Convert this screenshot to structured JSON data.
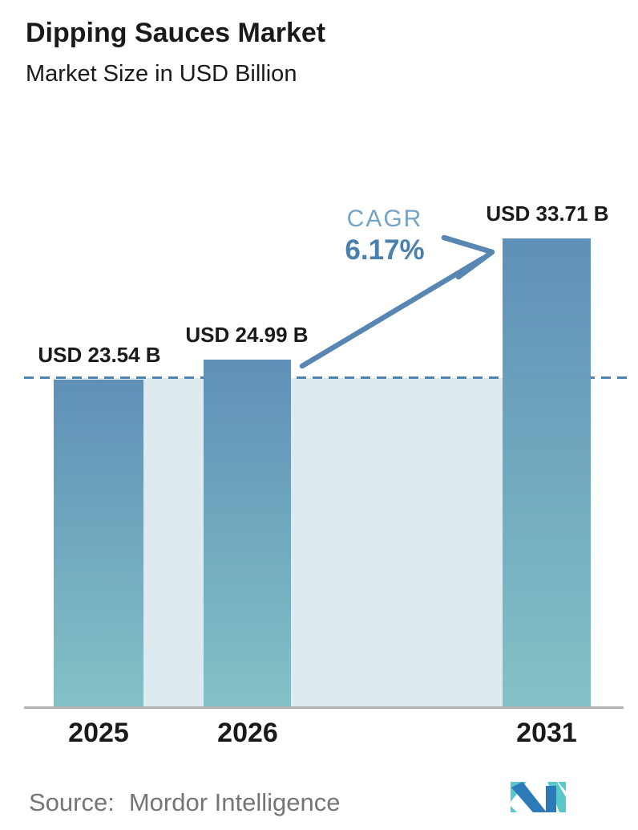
{
  "header": {
    "title": "Dipping Sauces Market",
    "subtitle": "Market Size in USD Billion"
  },
  "chart_data": {
    "type": "bar",
    "title": "Dipping Sauces Market",
    "subtitle": "Market Size in USD Billion",
    "unit": "USD Billion",
    "categories": [
      "2025",
      "2026",
      "2031"
    ],
    "values": [
      23.54,
      24.99,
      33.71
    ],
    "bar_labels": [
      "USD 23.54 B",
      "USD 24.99 B",
      "USD 33.71 B"
    ],
    "cagr_label": "CAGR",
    "cagr_value": "6.17%",
    "reference_line": {
      "style": "dashed",
      "at_value": 23.54
    },
    "ylim": [
      0,
      35
    ],
    "grid": false,
    "legend": "none",
    "xlabel": "",
    "ylabel": ""
  },
  "footer": {
    "source_label": "Source:",
    "source_name": "Mordor Intelligence",
    "logo_name": "mordor-intelligence-logo"
  },
  "colors": {
    "text": "#1a1a1a",
    "bar_top": "#5f90b8",
    "bar_bottom": "#82c2c6",
    "panel": "#dfe9f0",
    "dashed_line": "#5283b0",
    "arrow": "#5886b2",
    "cagr_label": "#74a3c7",
    "cagr_value": "#4a7fae",
    "axis": "#b2b2b2",
    "source_text": "#757575",
    "logo_blue": "#2c7ab8",
    "logo_teal": "#58c8cd"
  }
}
